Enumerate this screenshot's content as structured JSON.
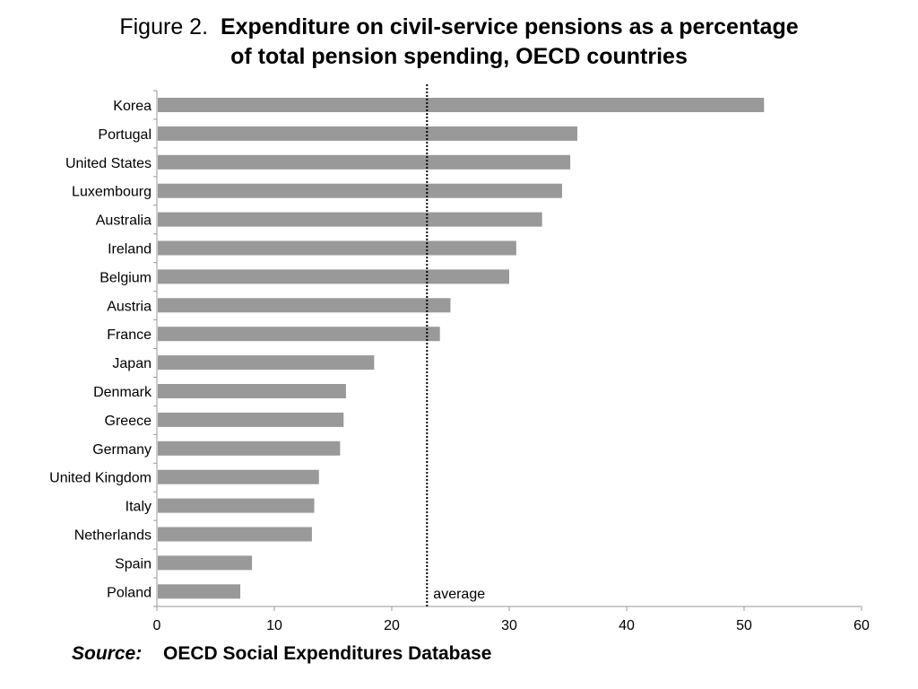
{
  "figure_label": "Figure 2.",
  "title_line1": "Expenditure on civil-service pensions as a percentage",
  "title_line2": "of total pension spending, OECD countries",
  "source_label": "Source:",
  "source_text": "OECD Social Expenditures Database",
  "chart_data": {
    "type": "bar",
    "orientation": "horizontal",
    "categories": [
      "Korea",
      "Portugal",
      "United States",
      "Luxembourg",
      "Australia",
      "Ireland",
      "Belgium",
      "Austria",
      "France",
      "Japan",
      "Denmark",
      "Greece",
      "Germany",
      "United Kingdom",
      "Italy",
      "Netherlands",
      "Spain",
      "Poland"
    ],
    "values": [
      51.7,
      35.8,
      35.2,
      34.5,
      32.8,
      30.6,
      30.0,
      25.0,
      24.1,
      18.5,
      16.1,
      15.9,
      15.6,
      13.8,
      13.4,
      13.2,
      8.1,
      7.1
    ],
    "xlim": [
      0,
      60
    ],
    "xticks": [
      0,
      10,
      20,
      30,
      40,
      50,
      60
    ],
    "average": 23.0,
    "average_label": "average",
    "bar_color": "#999999",
    "grid": false,
    "legend": "none"
  }
}
